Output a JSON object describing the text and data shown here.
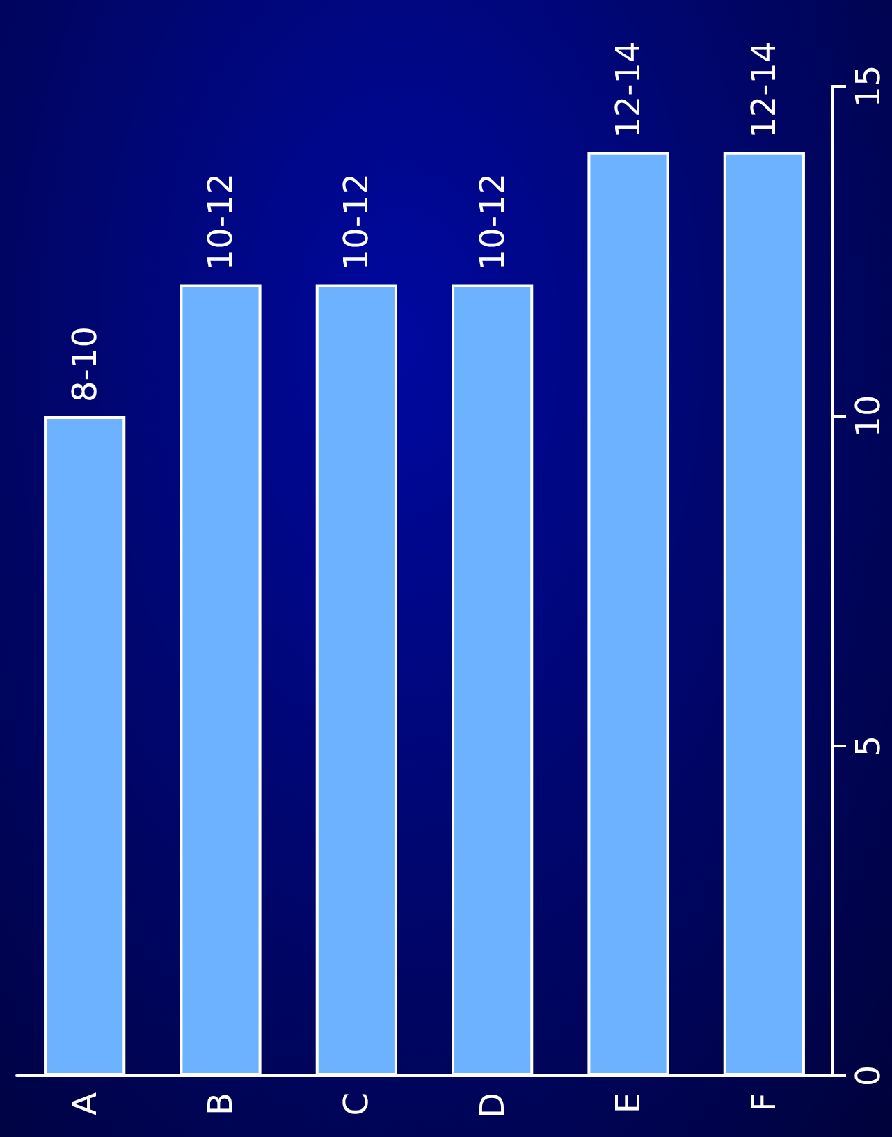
{
  "chart_data": {
    "type": "bar",
    "categories": [
      "A",
      "B",
      "C",
      "D",
      "E",
      "F"
    ],
    "values": [
      10,
      12,
      12,
      12,
      14,
      14
    ],
    "value_labels": [
      "8-10",
      "10-12",
      "10-12",
      "10-12",
      "12-14",
      "12-14"
    ],
    "color": "#6cb2ff",
    "ylim": [
      0,
      15
    ],
    "yticks": [
      0,
      5,
      10,
      15
    ]
  }
}
